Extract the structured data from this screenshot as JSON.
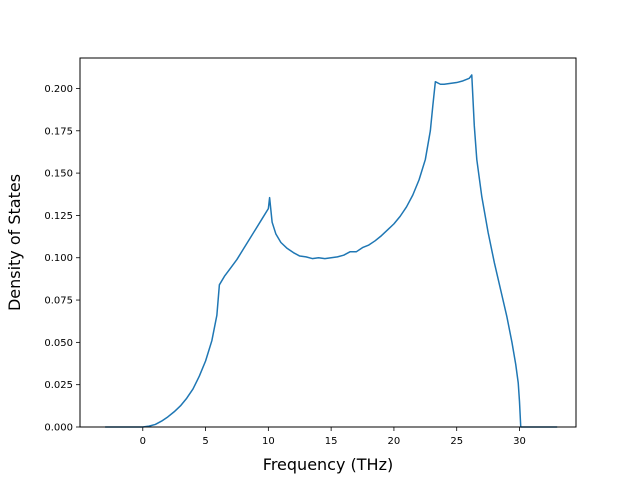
{
  "chart_data": {
    "type": "line",
    "title": "",
    "xlabel": "Frequency (THz)",
    "ylabel": "Density of States",
    "xlim": [
      -5,
      34.5
    ],
    "ylim": [
      0,
      0.218
    ],
    "grid": false,
    "x_ticks": [
      0,
      5,
      10,
      15,
      20,
      25,
      30
    ],
    "x_tick_labels": [
      "0",
      "5",
      "10",
      "15",
      "20",
      "25",
      "30"
    ],
    "y_ticks": [
      0,
      0.025,
      0.05,
      0.075,
      0.1,
      0.125,
      0.15,
      0.175,
      0.2
    ],
    "y_tick_labels": [
      "0.000",
      "0.025",
      "0.050",
      "0.075",
      "0.100",
      "0.125",
      "0.150",
      "0.175",
      "0.200"
    ],
    "series": [
      {
        "color": "#1f77b4",
        "points": [
          [
            -3.0,
            0.0
          ],
          [
            0.0,
            0.0
          ],
          [
            0.5,
            0.0005
          ],
          [
            1.0,
            0.0015
          ],
          [
            1.5,
            0.0035
          ],
          [
            2.0,
            0.006
          ],
          [
            2.5,
            0.009
          ],
          [
            3.0,
            0.0125
          ],
          [
            3.5,
            0.017
          ],
          [
            4.0,
            0.0225
          ],
          [
            4.5,
            0.03
          ],
          [
            5.0,
            0.039
          ],
          [
            5.5,
            0.051
          ],
          [
            5.9,
            0.066
          ],
          [
            6.1,
            0.084
          ],
          [
            6.5,
            0.089
          ],
          [
            7.0,
            0.094
          ],
          [
            7.5,
            0.099
          ],
          [
            8.0,
            0.105
          ],
          [
            8.5,
            0.111
          ],
          [
            9.0,
            0.117
          ],
          [
            9.5,
            0.123
          ],
          [
            10.0,
            0.129
          ],
          [
            10.1,
            0.1355
          ],
          [
            10.3,
            0.121
          ],
          [
            10.6,
            0.114
          ],
          [
            11.0,
            0.109
          ],
          [
            11.5,
            0.1055
          ],
          [
            12.0,
            0.103
          ],
          [
            12.5,
            0.101
          ],
          [
            13.0,
            0.1005
          ],
          [
            13.5,
            0.0995
          ],
          [
            14.0,
            0.1
          ],
          [
            14.5,
            0.0995
          ],
          [
            15.0,
            0.1
          ],
          [
            15.5,
            0.1005
          ],
          [
            16.0,
            0.1015
          ],
          [
            16.5,
            0.1035
          ],
          [
            17.0,
            0.1035
          ],
          [
            17.5,
            0.106
          ],
          [
            18.0,
            0.1075
          ],
          [
            18.5,
            0.11
          ],
          [
            19.0,
            0.113
          ],
          [
            19.5,
            0.1165
          ],
          [
            20.0,
            0.12
          ],
          [
            20.5,
            0.1245
          ],
          [
            21.0,
            0.13
          ],
          [
            21.5,
            0.137
          ],
          [
            22.0,
            0.146
          ],
          [
            22.5,
            0.158
          ],
          [
            22.9,
            0.175
          ],
          [
            23.1,
            0.19
          ],
          [
            23.3,
            0.204
          ],
          [
            23.7,
            0.2025
          ],
          [
            24.0,
            0.2025
          ],
          [
            24.5,
            0.203
          ],
          [
            25.0,
            0.2035
          ],
          [
            25.5,
            0.2045
          ],
          [
            26.0,
            0.206
          ],
          [
            26.2,
            0.208
          ],
          [
            26.4,
            0.178
          ],
          [
            26.6,
            0.158
          ],
          [
            27.0,
            0.136
          ],
          [
            27.5,
            0.115
          ],
          [
            28.0,
            0.097
          ],
          [
            28.5,
            0.081
          ],
          [
            29.0,
            0.065
          ],
          [
            29.4,
            0.05
          ],
          [
            29.7,
            0.037
          ],
          [
            29.9,
            0.026
          ],
          [
            30.0,
            0.015
          ],
          [
            30.1,
            0.0
          ],
          [
            33.0,
            0.0
          ]
        ]
      }
    ]
  }
}
